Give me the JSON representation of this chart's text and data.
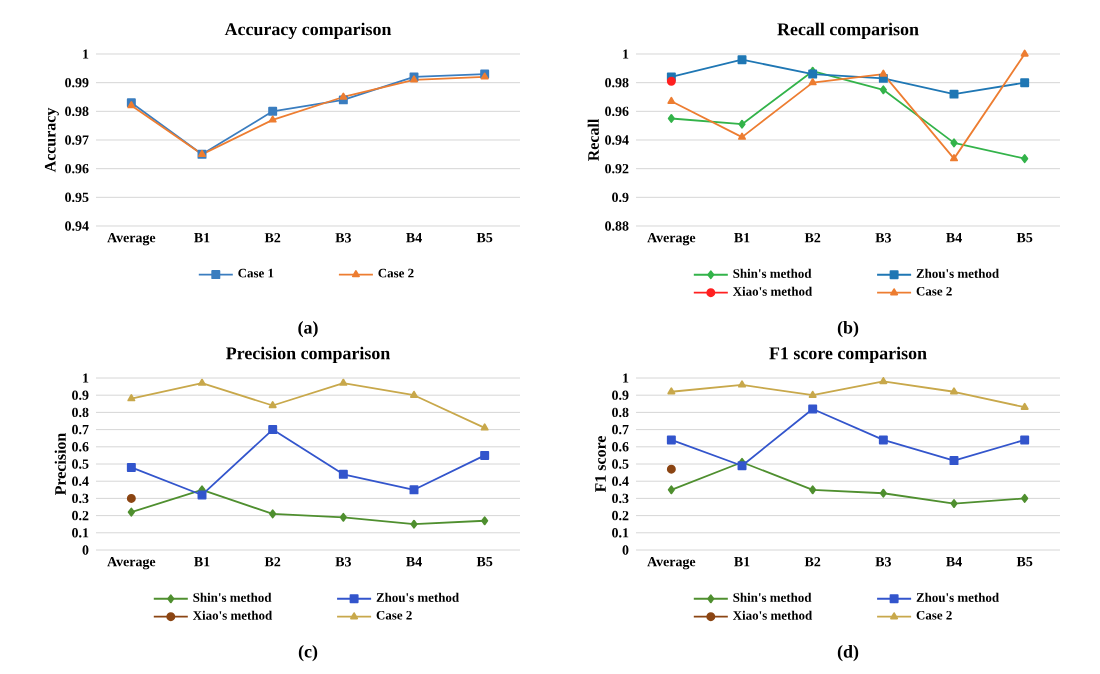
{
  "chart_data": [
    {
      "type": "line",
      "title": "Accuracy comparison",
      "ylabel": "Accuracy",
      "categories": [
        "Average",
        "B1",
        "B2",
        "B3",
        "B4",
        "B5"
      ],
      "ylim": [
        0.94,
        1
      ],
      "yticks": [
        0.94,
        0.95,
        0.96,
        0.97,
        0.98,
        0.99,
        1
      ],
      "grid": "y",
      "legend": "bottom",
      "annotations": [
        "(a)"
      ],
      "series": [
        {
          "name": "Case 1",
          "color": "#3a7dbf",
          "marker": "square",
          "values": [
            0.983,
            0.965,
            0.98,
            0.984,
            0.992,
            0.993
          ]
        },
        {
          "name": "Case 2",
          "color": "#ed7d31",
          "marker": "triangle",
          "values": [
            0.982,
            0.965,
            0.977,
            0.985,
            0.991,
            0.992
          ]
        }
      ]
    },
    {
      "type": "line",
      "title": "Recall comparison",
      "ylabel": "Recall",
      "categories": [
        "Average",
        "B1",
        "B2",
        "B3",
        "B4",
        "B5"
      ],
      "ylim": [
        0.88,
        1
      ],
      "yticks": [
        0.88,
        0.9,
        0.92,
        0.94,
        0.96,
        0.98,
        1
      ],
      "grid": "y",
      "legend": "bottom",
      "annotations": [
        "(b)"
      ],
      "series": [
        {
          "name": "Shin's method",
          "color": "#33b34a",
          "marker": "diamond",
          "values": [
            0.955,
            0.951,
            0.988,
            0.975,
            0.938,
            0.927
          ]
        },
        {
          "name": "Zhou's method",
          "color": "#1f77b4",
          "marker": "square",
          "values": [
            0.984,
            0.996,
            0.986,
            0.983,
            0.972,
            0.98
          ]
        },
        {
          "name": "Xiao's method",
          "color": "#ff2020",
          "marker": "circle",
          "values": [
            0.981,
            null,
            null,
            null,
            null,
            null
          ]
        },
        {
          "name": "Case 2",
          "color": "#ed7d31",
          "marker": "triangle",
          "values": [
            0.967,
            0.942,
            0.98,
            0.986,
            0.927,
            1.0
          ]
        }
      ]
    },
    {
      "type": "line",
      "title": "Precision comparison",
      "ylabel": "Precision",
      "categories": [
        "Average",
        "B1",
        "B2",
        "B3",
        "B4",
        "B5"
      ],
      "ylim": [
        0,
        1
      ],
      "yticks": [
        0,
        0.1,
        0.2,
        0.3,
        0.4,
        0.5,
        0.6,
        0.7,
        0.8,
        0.9,
        1
      ],
      "grid": "y",
      "legend": "bottom",
      "annotations": [
        "(c)"
      ],
      "series": [
        {
          "name": "Shin's method",
          "color": "#4f8f2f",
          "marker": "diamond",
          "values": [
            0.22,
            0.35,
            0.21,
            0.19,
            0.15,
            0.17
          ]
        },
        {
          "name": "Zhou's method",
          "color": "#3355cc",
          "marker": "square",
          "values": [
            0.48,
            0.32,
            0.7,
            0.44,
            0.35,
            0.55
          ]
        },
        {
          "name": "Xiao's method",
          "color": "#8b4513",
          "marker": "circle",
          "values": [
            0.3,
            null,
            null,
            null,
            null,
            null
          ]
        },
        {
          "name": "Case 2",
          "color": "#c8a84b",
          "marker": "triangle",
          "values": [
            0.88,
            0.97,
            0.84,
            0.97,
            0.9,
            0.71
          ]
        }
      ]
    },
    {
      "type": "line",
      "title": "F1 score comparison",
      "ylabel": "F1 score",
      "categories": [
        "Average",
        "B1",
        "B2",
        "B3",
        "B4",
        "B5"
      ],
      "ylim": [
        0,
        1
      ],
      "yticks": [
        0,
        0.1,
        0.2,
        0.3,
        0.4,
        0.5,
        0.6,
        0.7,
        0.8,
        0.9,
        1
      ],
      "grid": "y",
      "legend": "bottom",
      "annotations": [
        "(d)"
      ],
      "series": [
        {
          "name": "Shin's method",
          "color": "#4f8f2f",
          "marker": "diamond",
          "values": [
            0.35,
            0.51,
            0.35,
            0.33,
            0.27,
            0.3
          ]
        },
        {
          "name": "Zhou's method",
          "color": "#3355cc",
          "marker": "square",
          "values": [
            0.64,
            0.49,
            0.82,
            0.64,
            0.52,
            0.64
          ]
        },
        {
          "name": "Xiao's method",
          "color": "#8b4513",
          "marker": "circle",
          "values": [
            0.47,
            null,
            null,
            null,
            null,
            null
          ]
        },
        {
          "name": "Case 2",
          "color": "#c8a84b",
          "marker": "triangle",
          "values": [
            0.92,
            0.96,
            0.9,
            0.98,
            0.92,
            0.83
          ]
        }
      ]
    }
  ]
}
